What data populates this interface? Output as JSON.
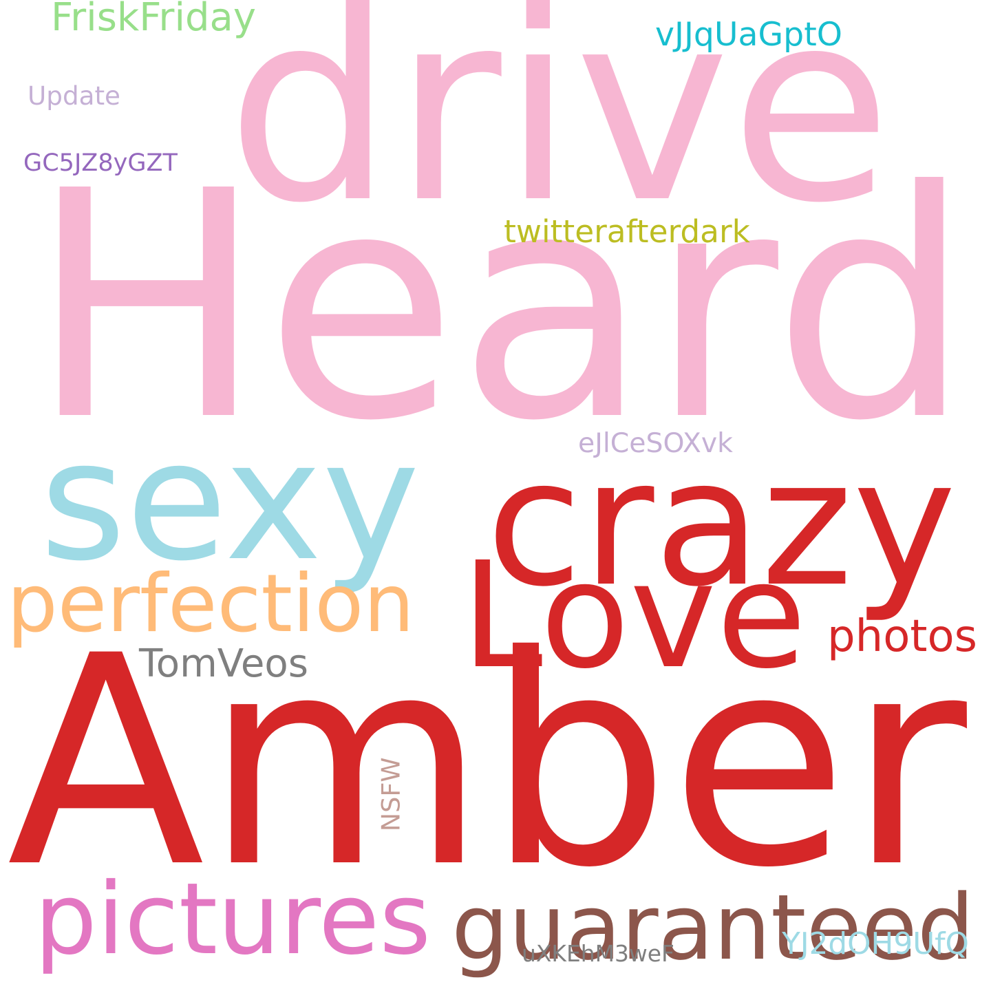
{
  "words": {
    "amber": {
      "text": "Amber",
      "color": "#d62728"
    },
    "heard": {
      "text": "Heard",
      "color": "#f7b6d2"
    },
    "drive": {
      "text": "drive",
      "color": "#f7b6d2"
    },
    "crazy": {
      "text": "crazy",
      "color": "#d62728"
    },
    "sexy": {
      "text": "sexy",
      "color": "#9edae5"
    },
    "love": {
      "text": "Love",
      "color": "#d62728"
    },
    "perfection": {
      "text": "perfection",
      "color": "#ffbb78"
    },
    "pictures": {
      "text": "pictures",
      "color": "#e377c2"
    },
    "guaranteed": {
      "text": "guaranteed",
      "color": "#8c564b"
    },
    "photos": {
      "text": "photos",
      "color": "#d62728"
    },
    "tomveos": {
      "text": "TomVeos",
      "color": "#7f7f7f"
    },
    "friskfriday": {
      "text": "FriskFriday",
      "color": "#98df8a"
    },
    "vjjquagpto": {
      "text": "vJJqUaGptO",
      "color": "#17becf"
    },
    "update": {
      "text": "Update",
      "color": "#c5b0d5"
    },
    "gc5jz8ygzt": {
      "text": "GC5JZ8yGZT",
      "color": "#9467bd"
    },
    "twitterafterdark": {
      "text": "twitterafterdark",
      "color": "#bcbd22"
    },
    "ejlcesoxvk": {
      "text": "eJlCeSOXvk",
      "color": "#c5b0d5"
    },
    "nsfw": {
      "text": "NSFW",
      "color": "#c49c94"
    },
    "uxkehm3wef": {
      "text": "uXKEhM3weF",
      "color": "#7f7f7f"
    },
    "yj2doh9ufq": {
      "text": "YJ2dOH9UfQ",
      "color": "#9edae5"
    }
  }
}
